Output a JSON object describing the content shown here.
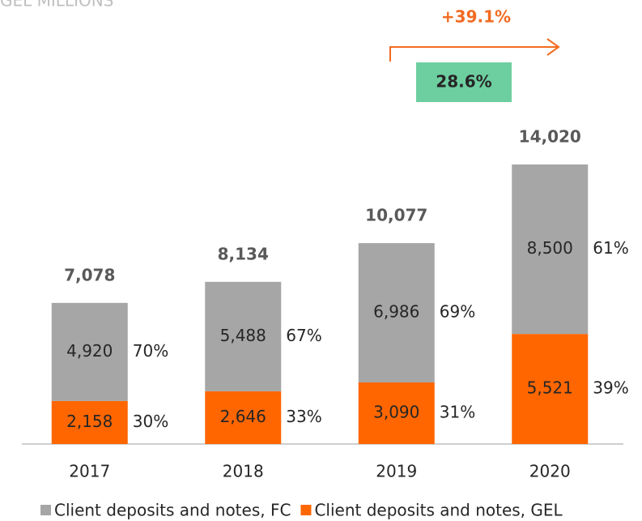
{
  "chart_data": {
    "type": "stacked_bar",
    "subtitle": "GEL MILLIONS",
    "categories": [
      "2017",
      "2018",
      "2019",
      "2020"
    ],
    "series": [
      {
        "name": "Client deposits and notes, FC",
        "color": "#a6a6a6",
        "values": [
          4920,
          5488,
          6986,
          8500
        ],
        "value_labels": [
          "4,920",
          "5,488",
          "6,986",
          "8,500"
        ],
        "shares": [
          70,
          67,
          69,
          61
        ],
        "share_labels": [
          "70%",
          "67%",
          "69%",
          "61%"
        ]
      },
      {
        "name": "Client deposits and notes, GEL",
        "color": "#ff6600",
        "values": [
          2158,
          2646,
          3090,
          5521
        ],
        "value_labels": [
          "2,158",
          "2,646",
          "3,090",
          "5,521"
        ],
        "shares": [
          30,
          33,
          31,
          39
        ],
        "share_labels": [
          "30%",
          "33%",
          "31%",
          "39%"
        ]
      }
    ],
    "totals": [
      7078,
      8134,
      10077,
      14020
    ],
    "total_labels": [
      "7,078",
      "8,134",
      "10,077",
      "14,020"
    ],
    "ylim": [
      0,
      14020
    ],
    "annotations": [
      {
        "text": "+39.1%",
        "color": "#f26b21"
      },
      {
        "text": "28.6%",
        "color": "#6dcfa0"
      }
    ]
  }
}
